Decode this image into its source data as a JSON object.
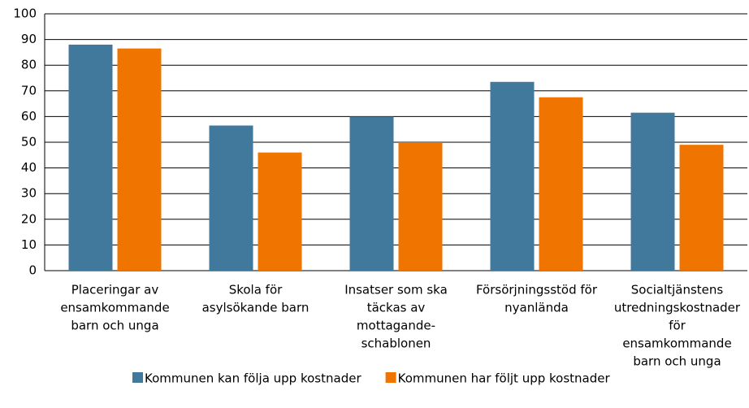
{
  "chart_data": {
    "type": "bar",
    "categories": [
      [
        "Placeringar av",
        "ensamkommande",
        "barn och unga"
      ],
      [
        "Skola för",
        "asylsökande barn"
      ],
      [
        "Insatser som ska",
        "täckas av",
        "mottagande-",
        "schablonen"
      ],
      [
        "Försörjningsstöd för",
        "nyanlända"
      ],
      [
        "Socialtjänstens",
        "utredningskostnader",
        "för",
        "ensamkommande",
        "barn och unga"
      ]
    ],
    "series": [
      {
        "name": "Kommunen kan följa upp kostnader",
        "color": "#41799c",
        "values": [
          88,
          56.5,
          60,
          73.5,
          61.5
        ]
      },
      {
        "name": "Kommunen har följt upp kostnader",
        "color": "#f07400",
        "values": [
          86.5,
          46,
          50,
          67.5,
          49
        ]
      }
    ],
    "ylim": [
      0,
      100
    ],
    "yticks": [
      0,
      10,
      20,
      30,
      40,
      50,
      60,
      70,
      80,
      90,
      100
    ],
    "grid": true
  }
}
